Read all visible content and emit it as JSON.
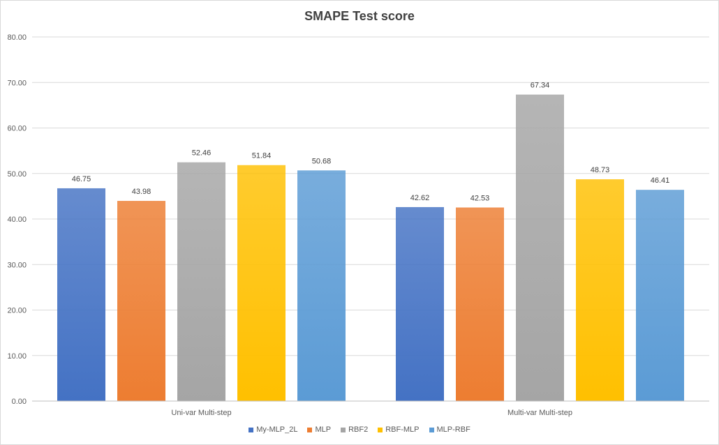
{
  "chart_data": {
    "type": "bar",
    "title": "SMAPE Test score",
    "categories": [
      "Uni-var Multi-step",
      "Multi-var Multi-step"
    ],
    "series": [
      {
        "name": "My-MLP_2L",
        "values": [
          46.75,
          42.62
        ],
        "color": "#4472c4"
      },
      {
        "name": "MLP",
        "values": [
          43.98,
          42.53
        ],
        "color": "#ed7d31"
      },
      {
        "name": "RBF2",
        "values": [
          52.46,
          67.34
        ],
        "color": "#a5a5a5"
      },
      {
        "name": "RBF-MLP",
        "values": [
          51.84,
          48.73
        ],
        "color": "#ffc000"
      },
      {
        "name": "MLP-RBF",
        "values": [
          50.68,
          46.41
        ],
        "color": "#5b9bd5"
      }
    ],
    "value_labels": [
      [
        "46.75",
        "42.62"
      ],
      [
        "43.98",
        "42.53"
      ],
      [
        "52.46",
        "67.34"
      ],
      [
        "51.84",
        "48.73"
      ],
      [
        "50.68",
        "46.41"
      ]
    ],
    "ylim": [
      0,
      80
    ],
    "yticks": [
      "0.00",
      "10.00",
      "20.00",
      "30.00",
      "40.00",
      "50.00",
      "60.00",
      "70.00",
      "80.00"
    ],
    "xlabel": "",
    "ylabel": "",
    "grid": true,
    "legend_position": "bottom"
  }
}
